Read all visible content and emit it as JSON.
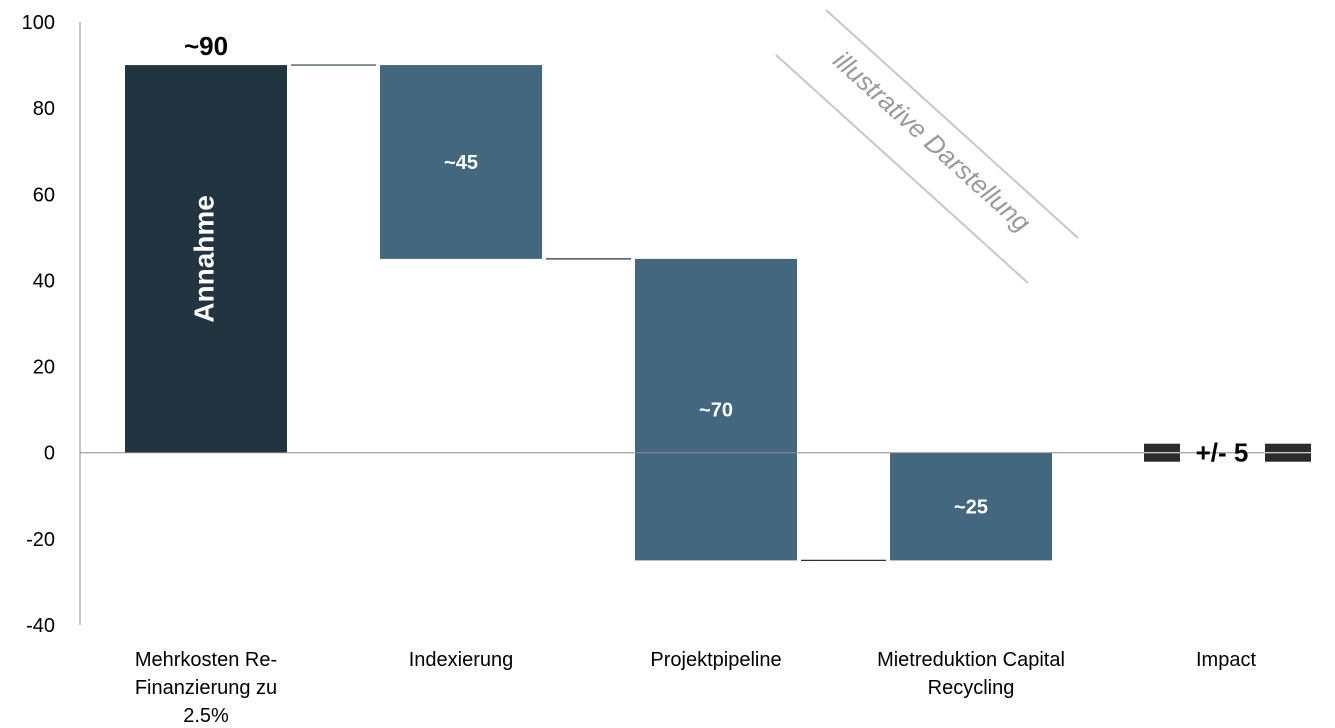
{
  "chart_data": {
    "type": "bar",
    "subtype": "waterfall",
    "title": "",
    "xlabel": "",
    "ylabel": "",
    "ylim": [
      -40,
      100
    ],
    "yticks": [
      100,
      80,
      60,
      40,
      20,
      0,
      -20,
      -40
    ],
    "grid": false,
    "categories": [
      [
        "Mehrkosten Re-",
        "Finanzierung zu",
        "2.5%"
      ],
      [
        "Indexierung"
      ],
      [
        "Projektpipeline"
      ],
      [
        "Mietreduktion Capital",
        "Recycling"
      ],
      [
        "Impact"
      ]
    ],
    "bars": [
      {
        "start": 0,
        "end": 90,
        "label": "~90",
        "inner_label": "Annahme",
        "color": "#213440"
      },
      {
        "start": 90,
        "end": 45,
        "label": "~45",
        "color": "#42677f"
      },
      {
        "start": 45,
        "end": -25,
        "label": "~70",
        "color": "#42677f"
      },
      {
        "start": -25,
        "end": 0,
        "label": "~25",
        "color": "#42677f"
      }
    ],
    "impact": {
      "value": 0,
      "label": "+/- 5",
      "color": "#2b2b2b"
    },
    "annotation": "illustrative Darstellung"
  }
}
